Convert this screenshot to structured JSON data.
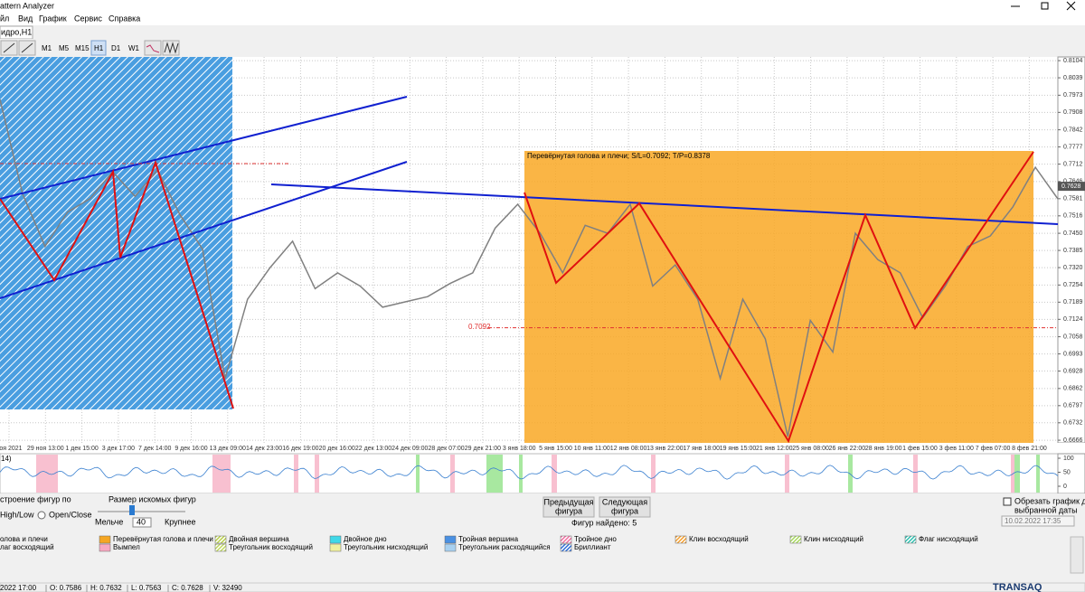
{
  "window": {
    "title": "attern Analyzer"
  },
  "menu": [
    "йл",
    "Вид",
    "График",
    "Сервис",
    "Справка"
  ],
  "tab": "идро,H1",
  "toolbar": {
    "timeframes": [
      "M1",
      "M5",
      "M15",
      "H1",
      "D1",
      "W1"
    ],
    "active": "H1"
  },
  "chart_data": {
    "type": "line",
    "color": "#808080",
    "values": [
      0.7957,
      0.76,
      0.74,
      0.753,
      0.7581,
      0.7683,
      0.759,
      0.769,
      0.752,
      0.739,
      0.69,
      0.72,
      0.732,
      0.742,
      0.724,
      0.73,
      0.725,
      0.717,
      0.719,
      0.721,
      0.726,
      0.73,
      0.747,
      0.756,
      0.745,
      0.73,
      0.748,
      0.745,
      0.756,
      0.725,
      0.733,
      0.72,
      0.69,
      0.72,
      0.705,
      0.668,
      0.712,
      0.7,
      0.745,
      0.735,
      0.73,
      0.713,
      0.725,
      0.74,
      0.744,
      0.755,
      0.77,
      0.758
    ],
    "ylim": [
      0.6656,
      0.8118
    ],
    "yticks": [
      0.8104,
      0.8039,
      0.7973,
      0.7908,
      0.7842,
      0.7777,
      0.7712,
      0.7646,
      0.7581,
      0.7516,
      {
        "value": 0.745,
        "label": "0.7450"
      },
      0.7385,
      {
        "value": 0.732,
        "label": "0.7320"
      },
      0.7254,
      0.7189,
      0.7124,
      0.7058,
      0.6993,
      0.6928,
      0.6862,
      0.6797,
      0.6732,
      0.6666
    ],
    "grid": true,
    "current_price": 0.7628,
    "stop_loss": 0.7092,
    "annotation": "Перевёрнутая голова и плечи; S/L=0.7092; T/P=0.8378",
    "x_labels": [
      "ноя 2021",
      "29 ноя 13:00",
      "1 дек 15:00",
      "3 дек 17:00",
      "7 дек 14:00",
      "9 дек 16:00",
      "13 дек 09:00",
      "14 дек 23:00",
      "16 дек 19:00",
      "20 дек 16:00",
      "22 дек 13:00",
      "24 дек 09:00",
      "28 дек 07:00",
      "29 дек 21:00",
      "3 янв 18:00",
      "5 янв 15:00",
      "10 янв 11:00",
      "12 янв 08:00",
      "13 янв 22:00",
      "17 янв 18:00",
      "19 янв 15:00",
      "21 янв 12:00",
      "25 янв 08:00",
      "26 янв 22:00",
      "28 янв 19:00",
      "1 фев 15:00",
      "3 фев 11:00",
      "7 фев 07:00",
      "8 фев 21:00"
    ]
  },
  "indicator": {
    "label": "14)",
    "ylim": [
      0,
      100
    ],
    "yticks": [
      100,
      50,
      0
    ]
  },
  "controls": {
    "build_by": "строение фигур по",
    "radio_high_low": "High/Low",
    "radio_open_close": "Open/Close",
    "size_title": "Размер искомых фигур",
    "smaller": "Мельче",
    "size_value": "40",
    "larger": "Крупнее",
    "prev_button": [
      "Предыдущая",
      "фигура"
    ],
    "next_button": [
      "Следующая",
      "фигура"
    ],
    "found": "Фигур найдено: 5",
    "crop_label": [
      "Обрезать график до",
      "выбранной даты"
    ],
    "crop_date": "10.02.2022 17:35"
  },
  "legend": [
    [
      {
        "label": "олова и плечи"
      },
      {
        "label": "Перевёрнутая голова и плечи",
        "color": "#f5a623"
      },
      {
        "label": "Двойная вершина",
        "color": "#b8cf4a",
        "hatched": true
      },
      {
        "label": "Двойное дно",
        "color": "#40d8e8"
      },
      {
        "label": "Тройная вершина",
        "color": "#4a90e2"
      },
      {
        "label": "Тройное дно",
        "color": "#f06fa0",
        "hatched": true
      },
      {
        "label": "Клин восходящий",
        "color": "#f5a030",
        "hatched": true
      },
      {
        "label": "Клин нисходящий",
        "color": "#a8d860",
        "hatched": true
      },
      {
        "label": "Флаг нисходящий",
        "color": "#30c0b0",
        "hatched": true
      }
    ],
    [
      {
        "label": "лаг восходящий"
      },
      {
        "label": "Вымпел",
        "color": "#f8a8c0"
      },
      {
        "label": "Треугольник восходящий",
        "color": "#c0d860",
        "hatched": true
      },
      {
        "label": "Треугольник нисходящий",
        "color": "#f0f0a0"
      },
      {
        "label": "Треугольник расходящийся",
        "color": "#a8d0f0"
      },
      {
        "label": "Бриллиант",
        "color": "#3070d8",
        "hatched": true
      }
    ]
  ],
  "status": [
    "2022 17:00",
    "O: 0.7586",
    "H: 0.7632",
    "L: 0.7563",
    "C: 0.7628",
    "V: 32490"
  ],
  "logo": "TRANSAQ"
}
